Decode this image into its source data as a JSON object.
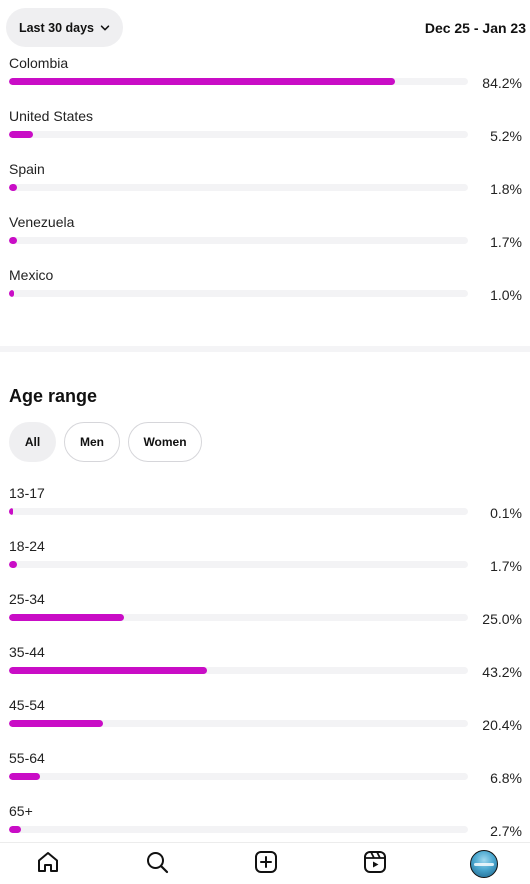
{
  "header": {
    "range_label": "Last 30 days",
    "date_range": "Dec 25 - Jan 23"
  },
  "countries": [
    {
      "name": "Colombia",
      "percent_label": "84.2%",
      "value": 84.2
    },
    {
      "name": "United States",
      "percent_label": "5.2%",
      "value": 5.2
    },
    {
      "name": "Spain",
      "percent_label": "1.8%",
      "value": 1.8
    },
    {
      "name": "Venezuela",
      "percent_label": "1.7%",
      "value": 1.7
    },
    {
      "name": "Mexico",
      "percent_label": "1.0%",
      "value": 1.0
    }
  ],
  "age_section": {
    "title": "Age range",
    "filters": [
      {
        "label": "All",
        "active": true
      },
      {
        "label": "Men",
        "active": false
      },
      {
        "label": "Women",
        "active": false
      }
    ],
    "rows": [
      {
        "name": "13-17",
        "percent_label": "0.1%",
        "value": 0.1
      },
      {
        "name": "18-24",
        "percent_label": "1.7%",
        "value": 1.7
      },
      {
        "name": "25-34",
        "percent_label": "25.0%",
        "value": 25.0
      },
      {
        "name": "35-44",
        "percent_label": "43.2%",
        "value": 43.2
      },
      {
        "name": "45-54",
        "percent_label": "20.4%",
        "value": 20.4
      },
      {
        "name": "55-64",
        "percent_label": "6.8%",
        "value": 6.8
      },
      {
        "name": "65+",
        "percent_label": "2.7%",
        "value": 2.7
      }
    ]
  },
  "colors": {
    "bar_fill": "#c90dc6",
    "bar_track": "#f3f3f5"
  },
  "bottom_nav": {
    "icons": [
      "home-icon",
      "search-icon",
      "create-icon",
      "reels-icon",
      "profile-avatar"
    ]
  }
}
